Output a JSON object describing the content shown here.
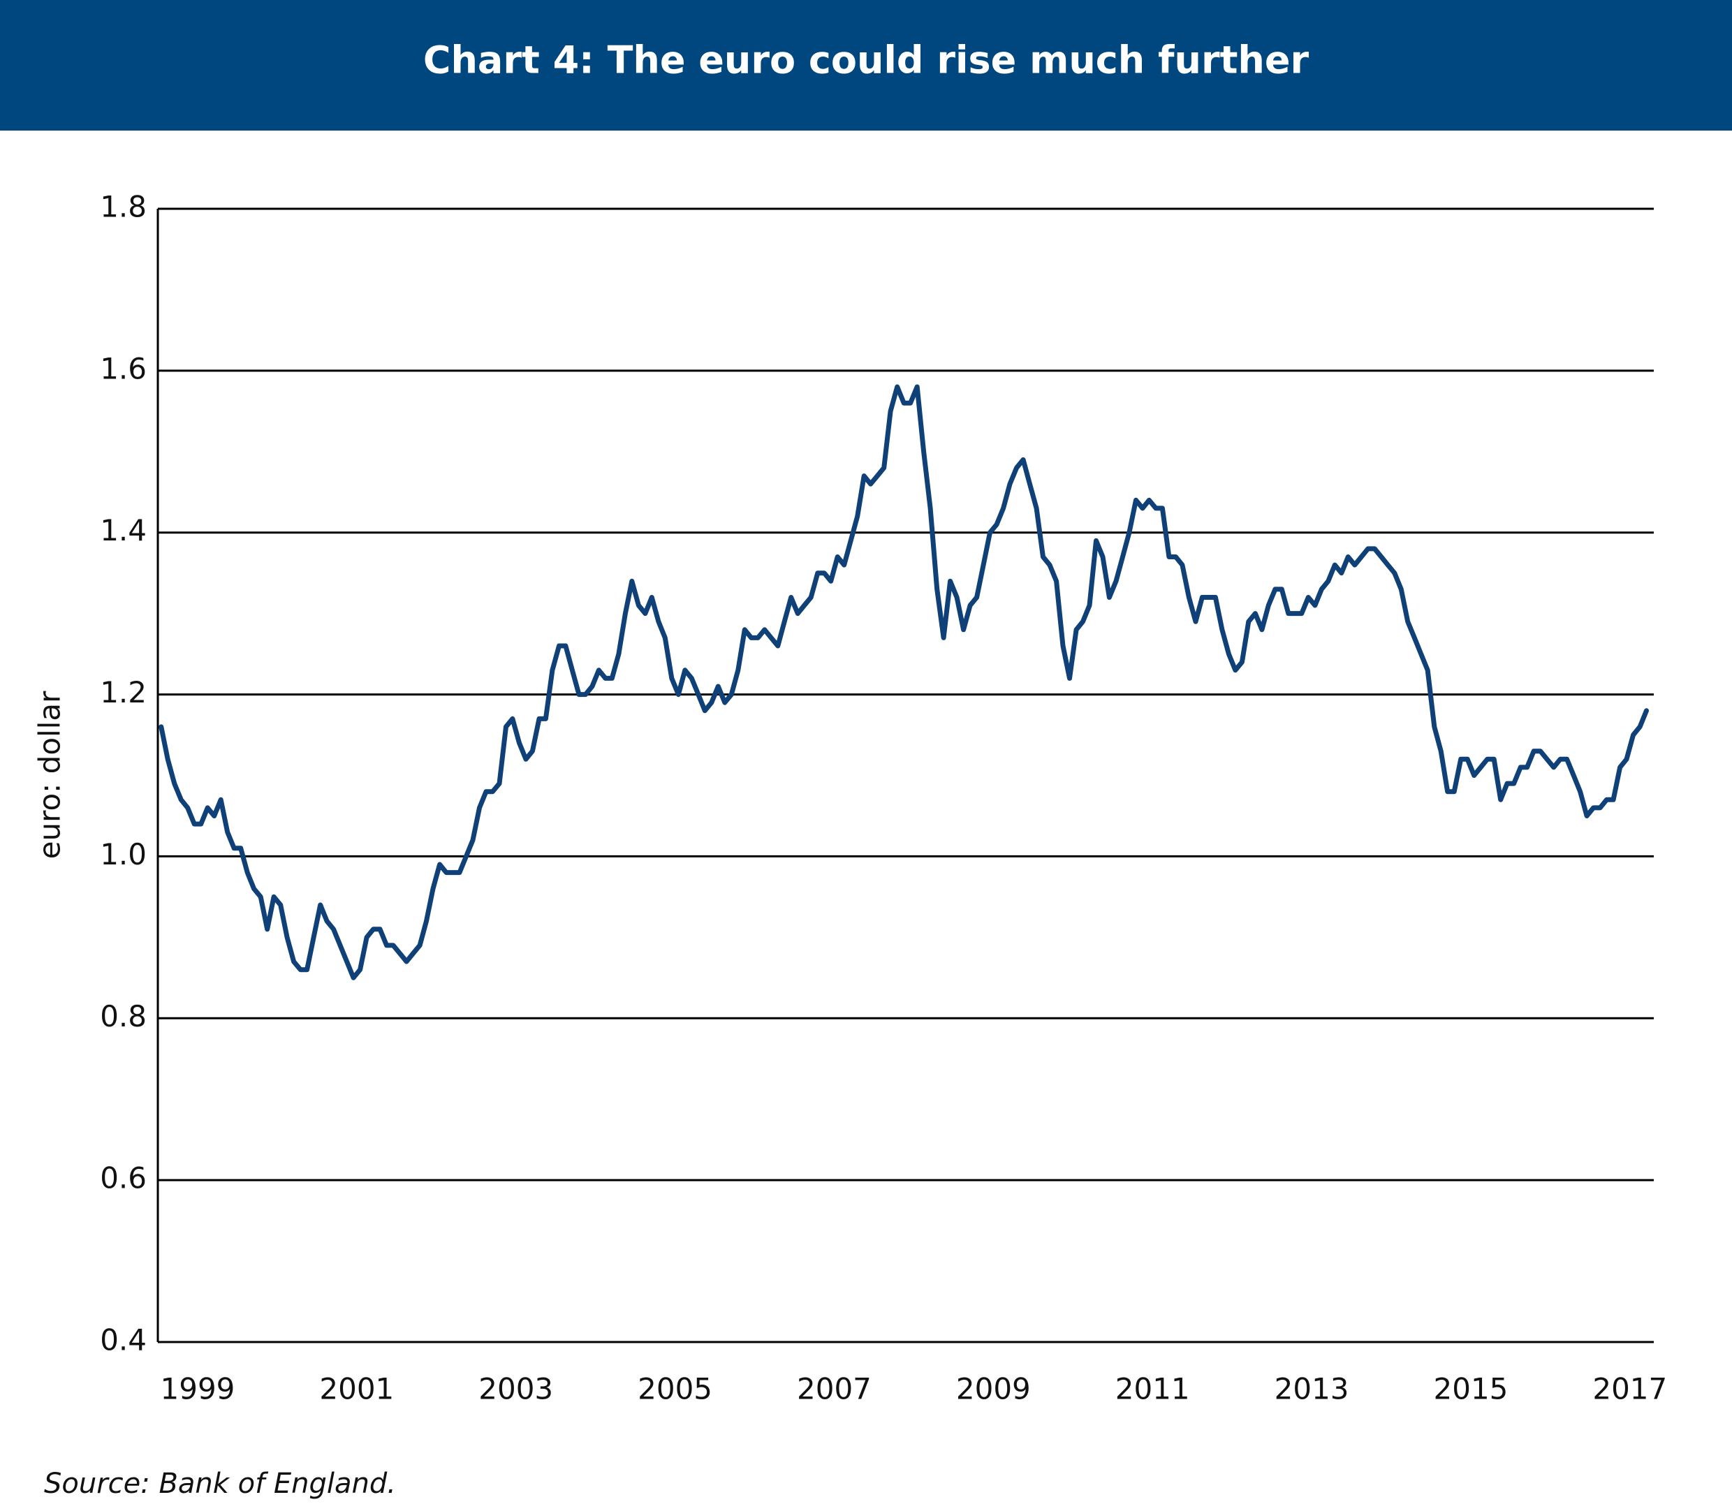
{
  "chart_data": {
    "type": "line",
    "title": "Chart 4: The euro could rise much further",
    "ylabel": "euro: dollar",
    "source": "Source: Bank of England.",
    "color": "#0f4178",
    "grid": true,
    "xlim": [
      1999,
      2017.8
    ],
    "xticks": [
      {
        "value": 1999.5,
        "label": "1999"
      },
      {
        "value": 2001.5,
        "label": "2001"
      },
      {
        "value": 2003.5,
        "label": "2003"
      },
      {
        "value": 2005.5,
        "label": "2005"
      },
      {
        "value": 2007.5,
        "label": "2007"
      },
      {
        "value": 2009.5,
        "label": "2009"
      },
      {
        "value": 2011.5,
        "label": "2011"
      },
      {
        "value": 2013.5,
        "label": "2013"
      },
      {
        "value": 2015.5,
        "label": "2015"
      },
      {
        "value": 2017.5,
        "label": "2017"
      }
    ],
    "ylim": [
      0.4,
      1.8
    ],
    "yticks": [
      0.4,
      0.6,
      0.8,
      {
        "value": 1,
        "label": "1.0"
      },
      1.2,
      1.4,
      1.6,
      1.8
    ],
    "x": [
      1999.042,
      1999.125,
      1999.208,
      1999.292,
      1999.375,
      1999.458,
      1999.542,
      1999.625,
      1999.708,
      1999.792,
      1999.875,
      1999.958,
      2000.042,
      2000.125,
      2000.208,
      2000.292,
      2000.375,
      2000.458,
      2000.542,
      2000.625,
      2000.708,
      2000.792,
      2000.875,
      2000.958,
      2001.042,
      2001.125,
      2001.208,
      2001.292,
      2001.375,
      2001.458,
      2001.542,
      2001.625,
      2001.708,
      2001.792,
      2001.875,
      2001.958,
      2002.042,
      2002.125,
      2002.208,
      2002.292,
      2002.375,
      2002.458,
      2002.542,
      2002.625,
      2002.708,
      2002.792,
      2002.875,
      2002.958,
      2003.042,
      2003.125,
      2003.208,
      2003.292,
      2003.375,
      2003.458,
      2003.542,
      2003.625,
      2003.708,
      2003.792,
      2003.875,
      2003.958,
      2004.042,
      2004.125,
      2004.208,
      2004.292,
      2004.375,
      2004.458,
      2004.542,
      2004.625,
      2004.708,
      2004.792,
      2004.875,
      2004.958,
      2005.042,
      2005.125,
      2005.208,
      2005.292,
      2005.375,
      2005.458,
      2005.542,
      2005.625,
      2005.708,
      2005.792,
      2005.875,
      2005.958,
      2006.042,
      2006.125,
      2006.208,
      2006.292,
      2006.375,
      2006.458,
      2006.542,
      2006.625,
      2006.708,
      2006.792,
      2006.875,
      2006.958,
      2007.042,
      2007.125,
      2007.208,
      2007.292,
      2007.375,
      2007.458,
      2007.542,
      2007.625,
      2007.708,
      2007.792,
      2007.875,
      2007.958,
      2008.042,
      2008.125,
      2008.208,
      2008.292,
      2008.375,
      2008.458,
      2008.542,
      2008.625,
      2008.708,
      2008.792,
      2008.875,
      2008.958,
      2009.042,
      2009.125,
      2009.208,
      2009.292,
      2009.375,
      2009.458,
      2009.542,
      2009.625,
      2009.708,
      2009.792,
      2009.875,
      2009.958,
      2010.042,
      2010.125,
      2010.208,
      2010.292,
      2010.375,
      2010.458,
      2010.542,
      2010.625,
      2010.708,
      2010.792,
      2010.875,
      2010.958,
      2011.042,
      2011.125,
      2011.208,
      2011.292,
      2011.375,
      2011.458,
      2011.542,
      2011.625,
      2011.708,
      2011.792,
      2011.875,
      2011.958,
      2012.042,
      2012.125,
      2012.208,
      2012.292,
      2012.375,
      2012.458,
      2012.542,
      2012.625,
      2012.708,
      2012.792,
      2012.875,
      2012.958,
      2013.042,
      2013.125,
      2013.208,
      2013.292,
      2013.375,
      2013.458,
      2013.542,
      2013.625,
      2013.708,
      2013.792,
      2013.875,
      2013.958,
      2014.042,
      2014.125,
      2014.208,
      2014.292,
      2014.375,
      2014.458,
      2014.542,
      2014.625,
      2014.708,
      2014.792,
      2014.875,
      2014.958,
      2015.042,
      2015.125,
      2015.208,
      2015.292,
      2015.375,
      2015.458,
      2015.542,
      2015.625,
      2015.708,
      2015.792,
      2015.875,
      2015.958,
      2016.042,
      2016.125,
      2016.208,
      2016.292,
      2016.375,
      2016.458,
      2016.542,
      2016.625,
      2016.708,
      2016.792,
      2016.875,
      2016.958,
      2017.042,
      2017.125,
      2017.208,
      2017.292,
      2017.375,
      2017.458,
      2017.542,
      2017.625,
      2017.708
    ],
    "values": [
      1.16,
      1.12,
      1.09,
      1.07,
      1.06,
      1.04,
      1.04,
      1.06,
      1.05,
      1.07,
      1.03,
      1.01,
      1.01,
      0.98,
      0.96,
      0.95,
      0.91,
      0.95,
      0.94,
      0.9,
      0.87,
      0.86,
      0.86,
      0.9,
      0.94,
      0.92,
      0.91,
      0.89,
      0.87,
      0.85,
      0.86,
      0.9,
      0.91,
      0.91,
      0.89,
      0.89,
      0.88,
      0.87,
      0.88,
      0.89,
      0.92,
      0.96,
      0.99,
      0.98,
      0.98,
      0.98,
      1.0,
      1.02,
      1.06,
      1.08,
      1.08,
      1.09,
      1.16,
      1.17,
      1.14,
      1.12,
      1.13,
      1.17,
      1.17,
      1.23,
      1.26,
      1.26,
      1.23,
      1.2,
      1.2,
      1.21,
      1.23,
      1.22,
      1.22,
      1.25,
      1.3,
      1.34,
      1.31,
      1.3,
      1.32,
      1.29,
      1.27,
      1.22,
      1.2,
      1.23,
      1.22,
      1.2,
      1.18,
      1.19,
      1.21,
      1.19,
      1.2,
      1.23,
      1.28,
      1.27,
      1.27,
      1.28,
      1.27,
      1.26,
      1.29,
      1.32,
      1.3,
      1.31,
      1.32,
      1.35,
      1.35,
      1.34,
      1.37,
      1.36,
      1.39,
      1.42,
      1.47,
      1.46,
      1.47,
      1.48,
      1.55,
      1.58,
      1.56,
      1.56,
      1.58,
      1.5,
      1.43,
      1.33,
      1.27,
      1.34,
      1.32,
      1.28,
      1.31,
      1.32,
      1.36,
      1.4,
      1.41,
      1.43,
      1.46,
      1.48,
      1.49,
      1.46,
      1.43,
      1.37,
      1.36,
      1.34,
      1.26,
      1.22,
      1.28,
      1.29,
      1.31,
      1.39,
      1.37,
      1.32,
      1.34,
      1.37,
      1.4,
      1.44,
      1.43,
      1.44,
      1.43,
      1.43,
      1.37,
      1.37,
      1.36,
      1.32,
      1.29,
      1.32,
      1.32,
      1.32,
      1.28,
      1.25,
      1.23,
      1.24,
      1.29,
      1.3,
      1.28,
      1.31,
      1.33,
      1.33,
      1.3,
      1.3,
      1.3,
      1.32,
      1.31,
      1.33,
      1.34,
      1.36,
      1.35,
      1.37,
      1.36,
      1.37,
      1.38,
      1.38,
      1.37,
      1.36,
      1.35,
      1.33,
      1.29,
      1.27,
      1.25,
      1.23,
      1.16,
      1.13,
      1.08,
      1.08,
      1.12,
      1.12,
      1.1,
      1.11,
      1.12,
      1.12,
      1.07,
      1.09,
      1.09,
      1.11,
      1.11,
      1.13,
      1.13,
      1.12,
      1.11,
      1.12,
      1.12,
      1.1,
      1.08,
      1.05,
      1.06,
      1.06,
      1.07,
      1.07,
      1.11,
      1.12,
      1.15,
      1.16,
      1.18
    ]
  }
}
